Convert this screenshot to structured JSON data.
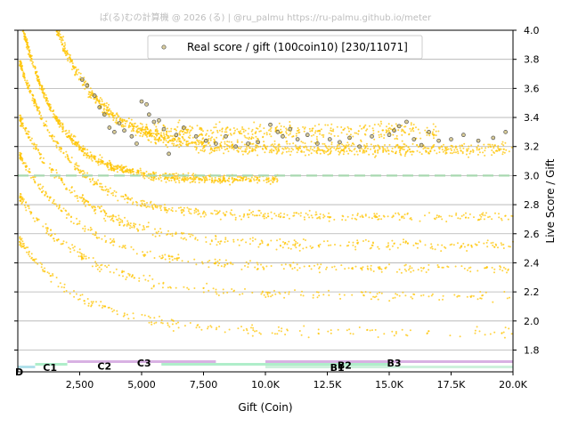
{
  "watermark": "ぱ(る)むの計算機 @ 2026 (る) | @ru_palmu  https://ru-palmu.github.io/meter",
  "chart_data": {
    "type": "scatter",
    "title": "",
    "xlabel": "Gift (Coin)",
    "ylabel": "Live Score / Gift",
    "xlim": [
      0,
      20000
    ],
    "ylim": [
      1.65,
      4.0
    ],
    "xticks": [
      2500,
      5000,
      7500,
      10000,
      12500,
      15000,
      17500,
      20000
    ],
    "xtick_labels": [
      "2,500",
      "5,000",
      "7,500",
      "10.0K",
      "12.5K",
      "15.0K",
      "17.5K",
      "20.0K"
    ],
    "yticks": [
      1.8,
      2.0,
      2.2,
      2.4,
      2.6,
      2.8,
      3.0,
      3.2,
      3.4,
      3.6,
      3.8,
      4.0
    ],
    "ytick_labels": [
      "1.8",
      "2.0",
      "2.2",
      "2.4",
      "2.6",
      "2.8",
      "3.0",
      "3.2",
      "3.4",
      "3.6",
      "3.8",
      "4.0"
    ],
    "y_axis_side": "right",
    "grid": "horizontal",
    "reference_line": {
      "y": 3.0,
      "style": "dashed",
      "color": "#a8d8b0"
    },
    "legend": {
      "position": "top-center",
      "label": "Real score / gift (100coin10) [230/11071]"
    },
    "colors": {
      "points": "#ffc400",
      "highlight": "#b8a040",
      "band_purple": "#d4a8e0",
      "band_green": "#a6ecc4",
      "band_lightgreen": "#c8f0d8",
      "band_cyan": "#a8dde8"
    },
    "series": [
      {
        "name": "Real score / gift (100coin10) [230/11071]",
        "x": [
          2600,
          2800,
          3100,
          3300,
          3500,
          3700,
          3900,
          4100,
          4300,
          4600,
          4800,
          5000,
          5200,
          5300,
          5500,
          5700,
          5900,
          6100,
          6400,
          6700,
          7200,
          7600,
          8000,
          8400,
          8800,
          9300,
          9700,
          10200,
          10500,
          10700,
          11000,
          11300,
          11700,
          12100,
          12600,
          13000,
          13400,
          13800,
          14300,
          15000,
          15200,
          15400,
          15700,
          16000,
          16300,
          16600,
          17000,
          17500,
          18000,
          18600,
          19200,
          19700
        ],
        "y": [
          3.66,
          3.62,
          3.55,
          3.47,
          3.42,
          3.33,
          3.3,
          3.36,
          3.31,
          3.27,
          3.22,
          3.51,
          3.49,
          3.42,
          3.37,
          3.38,
          3.32,
          3.15,
          3.28,
          3.33,
          3.27,
          3.24,
          3.22,
          3.27,
          3.2,
          3.22,
          3.23,
          3.35,
          3.3,
          3.27,
          3.32,
          3.25,
          3.28,
          3.22,
          3.25,
          3.23,
          3.26,
          3.2,
          3.27,
          3.28,
          3.31,
          3.34,
          3.37,
          3.25,
          3.21,
          3.3,
          3.24,
          3.25,
          3.28,
          3.24,
          3.26,
          3.3
        ]
      }
    ],
    "bands": [
      {
        "label": "C1",
        "x": [
          700,
          2000
        ],
        "row": 2,
        "color": "#a6ecc4"
      },
      {
        "label": "C2",
        "x": [
          2000,
          8000
        ],
        "row": 1,
        "color": "#d4a8e0"
      },
      {
        "label": "C3",
        "x": [
          5800,
          10000
        ],
        "row": 2,
        "color": "#a6ecc4"
      },
      {
        "label": "B1",
        "x": [
          10000,
          20000
        ],
        "row": 3,
        "color": "#c8f0d8"
      },
      {
        "label": "B2",
        "x": [
          10000,
          15000
        ],
        "row": 2,
        "color": "#a6ecc4"
      },
      {
        "label": "B3",
        "x": [
          10000,
          20000
        ],
        "row": 1,
        "color": "#d4a8e0"
      },
      {
        "label": "D",
        "x": [
          0,
          700
        ],
        "row": 3,
        "color": "#a8dde8"
      }
    ],
    "zone_labels": [
      {
        "text": "D",
        "x": 0,
        "y": 1.65
      },
      {
        "text": "C1",
        "x": 1300,
        "y": 1.68
      },
      {
        "text": "C2",
        "x": 3500,
        "y": 1.69
      },
      {
        "text": "C3",
        "x": 5100,
        "y": 1.71
      },
      {
        "text": "B1",
        "x": 12900,
        "y": 1.68
      },
      {
        "text": "B2",
        "x": 13200,
        "y": 1.695
      },
      {
        "text": "B3",
        "x": 15200,
        "y": 1.71
      }
    ]
  }
}
